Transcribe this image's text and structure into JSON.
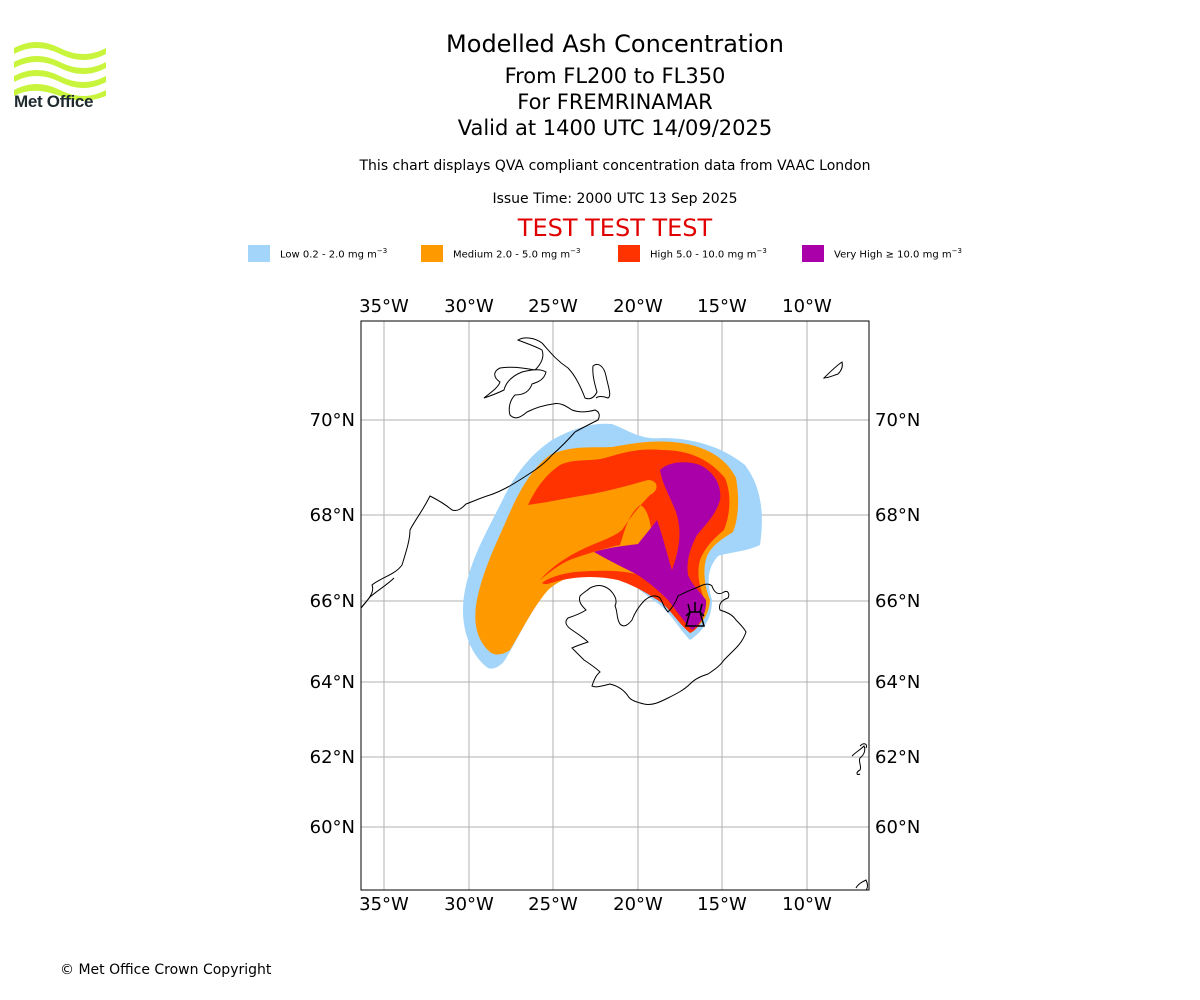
{
  "header": {
    "title": "Modelled Ash Concentration",
    "levels": "From FL200 to FL350",
    "volcano": "For FREMRINAMAR",
    "valid": "Valid at 1400 UTC 14/09/2025",
    "subtitle": "This chart displays QVA compliant concentration data from VAAC London",
    "issue_time": "Issue Time: 2000 UTC 13 Sep 2025",
    "test_banner": "TEST TEST TEST"
  },
  "logo": {
    "text": "Met Office",
    "color": "#c8f53c"
  },
  "legend": {
    "items": [
      {
        "label": "Low 0.2 - 2.0 mg m",
        "sup": "−3",
        "color": "#a3d5fb"
      },
      {
        "label": "Medium 2.0 - 5.0 mg m",
        "sup": "−3",
        "color": "#ff9900"
      },
      {
        "label": "High 5.0 - 10.0 mg m",
        "sup": "−3",
        "color": "#ff3300"
      },
      {
        "label": "Very High ≥ 10.0 mg m",
        "sup": "−3",
        "color": "#aa00aa"
      }
    ]
  },
  "map": {
    "lon_labels": [
      "35°W",
      "30°W",
      "25°W",
      "20°W",
      "15°W",
      "10°W"
    ],
    "lat_labels": [
      "70°N",
      "68°N",
      "66°N",
      "64°N",
      "62°N",
      "60°N"
    ],
    "volcano_marker": "volcano-icon"
  },
  "footer": {
    "copyright": "© Met Office Crown Copyright"
  }
}
